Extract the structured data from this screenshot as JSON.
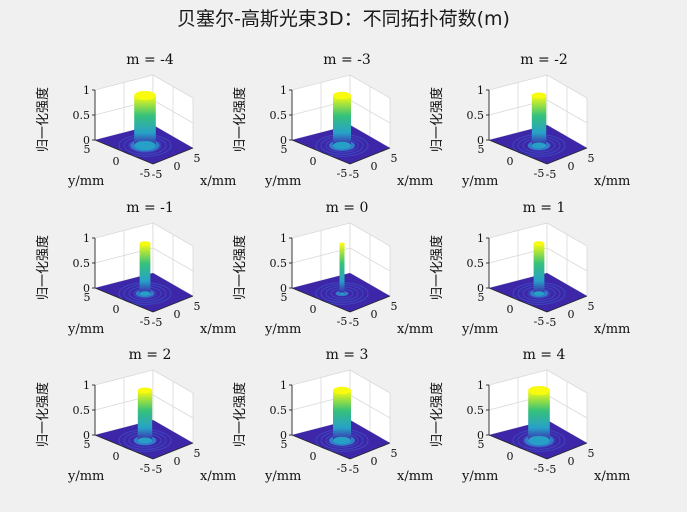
{
  "figure": {
    "title": "贝塞尔-高斯光束3D：不同拓扑荷数(m)"
  },
  "chart_data": [
    {
      "type": "surface3d",
      "title": "m = -4",
      "m": -4,
      "xlabel": "x/mm",
      "ylabel": "y/mm",
      "zlabel": "归一化强度",
      "xlim": [
        -5,
        5
      ],
      "ylim": [
        -5,
        5
      ],
      "zlim": [
        0,
        1
      ],
      "xticks": [
        "-5",
        "0",
        "5"
      ],
      "yticks": [
        "-5",
        "0",
        "5"
      ],
      "zticks": [
        "0",
        "0.5",
        "1"
      ],
      "peak": 1.0,
      "core_radius_mm": 0.9,
      "grid": true
    },
    {
      "type": "surface3d",
      "title": "m = -3",
      "m": -3,
      "xlabel": "x/mm",
      "ylabel": "y/mm",
      "zlabel": "归一化强度",
      "xlim": [
        -5,
        5
      ],
      "ylim": [
        -5,
        5
      ],
      "zlim": [
        0,
        1
      ],
      "xticks": [
        "-5",
        "0",
        "5"
      ],
      "yticks": [
        "-5",
        "0",
        "5"
      ],
      "zticks": [
        "0",
        "0.5",
        "1"
      ],
      "peak": 1.0,
      "core_radius_mm": 0.75,
      "grid": true
    },
    {
      "type": "surface3d",
      "title": "m = -2",
      "m": -2,
      "xlabel": "x/mm",
      "ylabel": "y/mm",
      "zlabel": "归一化强度",
      "xlim": [
        -5,
        5
      ],
      "ylim": [
        -5,
        5
      ],
      "zlim": [
        0,
        1
      ],
      "xticks": [
        "-5",
        "0",
        "5"
      ],
      "yticks": [
        "-5",
        "0",
        "5"
      ],
      "zticks": [
        "0",
        "0.5",
        "1"
      ],
      "peak": 1.0,
      "core_radius_mm": 0.6,
      "grid": true
    },
    {
      "type": "surface3d",
      "title": "m = -1",
      "m": -1,
      "xlabel": "x/mm",
      "ylabel": "y/mm",
      "zlabel": "归一化强度",
      "xlim": [
        -5,
        5
      ],
      "ylim": [
        -5,
        5
      ],
      "zlim": [
        0,
        1
      ],
      "xticks": [
        "-5",
        "0",
        "5"
      ],
      "yticks": [
        "-5",
        "0",
        "5"
      ],
      "zticks": [
        "0",
        "0.5",
        "1"
      ],
      "peak": 1.0,
      "core_radius_mm": 0.45,
      "grid": true
    },
    {
      "type": "surface3d",
      "title": "m = 0",
      "m": 0,
      "xlabel": "x/mm",
      "ylabel": "y/mm",
      "zlabel": "归一化强度",
      "xlim": [
        -5,
        5
      ],
      "ylim": [
        -5,
        5
      ],
      "zlim": [
        0,
        1
      ],
      "xticks": [
        "-5",
        "0",
        "5"
      ],
      "yticks": [
        "-5",
        "0",
        "5"
      ],
      "zticks": [
        "0",
        "0.5",
        "1"
      ],
      "peak": 1.0,
      "core_radius_mm": 0.15,
      "grid": true
    },
    {
      "type": "surface3d",
      "title": "m = 1",
      "m": 1,
      "xlabel": "x/mm",
      "ylabel": "y/mm",
      "zlabel": "归一化强度",
      "xlim": [
        -5,
        5
      ],
      "ylim": [
        -5,
        5
      ],
      "zlim": [
        0,
        1
      ],
      "xticks": [
        "-5",
        "0",
        "5"
      ],
      "yticks": [
        "-5",
        "0",
        "5"
      ],
      "zticks": [
        "0",
        "0.5",
        "1"
      ],
      "peak": 1.0,
      "core_radius_mm": 0.45,
      "grid": true
    },
    {
      "type": "surface3d",
      "title": "m = 2",
      "m": 2,
      "xlabel": "x/mm",
      "ylabel": "y/mm",
      "zlabel": "归一化强度",
      "xlim": [
        -5,
        5
      ],
      "ylim": [
        -5,
        5
      ],
      "zlim": [
        0,
        1
      ],
      "xticks": [
        "-5",
        "0",
        "5"
      ],
      "yticks": [
        "-5",
        "0",
        "5"
      ],
      "zticks": [
        "0",
        "0.5",
        "1"
      ],
      "peak": 1.0,
      "core_radius_mm": 0.6,
      "grid": true
    },
    {
      "type": "surface3d",
      "title": "m = 3",
      "m": 3,
      "xlabel": "x/mm",
      "ylabel": "y/mm",
      "zlabel": "归一化强度",
      "xlim": [
        -5,
        5
      ],
      "ylim": [
        -5,
        5
      ],
      "zlim": [
        0,
        1
      ],
      "xticks": [
        "-5",
        "0",
        "5"
      ],
      "yticks": [
        "-5",
        "0",
        "5"
      ],
      "zticks": [
        "0",
        "0.5",
        "1"
      ],
      "peak": 1.0,
      "core_radius_mm": 0.75,
      "grid": true
    },
    {
      "type": "surface3d",
      "title": "m = 4",
      "m": 4,
      "xlabel": "x/mm",
      "ylabel": "y/mm",
      "zlabel": "归一化强度",
      "xlim": [
        -5,
        5
      ],
      "ylim": [
        -5,
        5
      ],
      "zlim": [
        0,
        1
      ],
      "xticks": [
        "-5",
        "0",
        "5"
      ],
      "yticks": [
        "-5",
        "0",
        "5"
      ],
      "zticks": [
        "0",
        "0.5",
        "1"
      ],
      "peak": 1.0,
      "core_radius_mm": 0.9,
      "grid": true
    }
  ],
  "colors": {
    "background": "#f0f0f0",
    "axes_face": "#ffffff",
    "floor": "#3e26a8",
    "ring": "#3b55c8",
    "mid": "#27a0c8",
    "high": "#37c27a",
    "top": "#f9fb0e",
    "grid": "#d9d9d9",
    "axis": "#262626"
  }
}
